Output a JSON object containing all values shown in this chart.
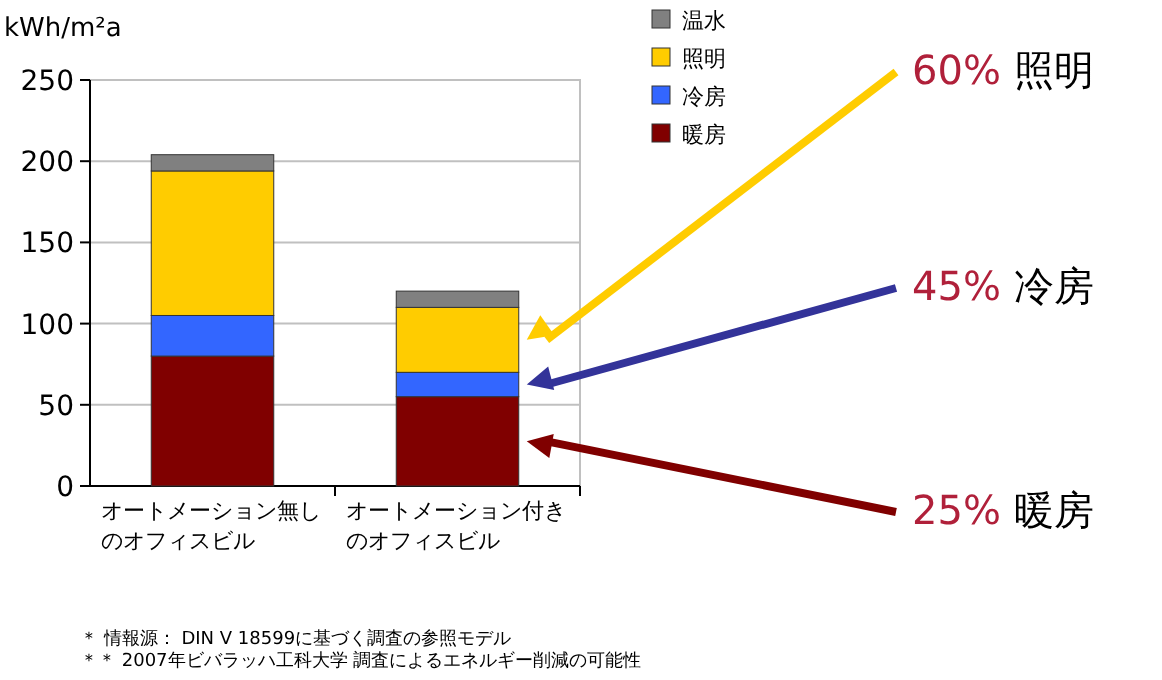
{
  "chart_data": {
    "type": "bar",
    "stacked": true,
    "ylabel": "kWh/m²a",
    "categories": [
      "オートメーション無しのオフィスビル",
      "オートメーション付きのオフィスビル"
    ],
    "series": [
      {
        "name": "暖房",
        "color": "#800000",
        "values": [
          80,
          55
        ]
      },
      {
        "name": "冷房",
        "color": "#3366ff",
        "values": [
          25,
          15
        ]
      },
      {
        "name": "照明",
        "color": "#ffcc00",
        "values": [
          89,
          40
        ]
      },
      {
        "name": "温水",
        "color": "#808080",
        "values": [
          10,
          10
        ]
      }
    ],
    "ylim": [
      0,
      250
    ],
    "yticks": [
      0,
      50,
      100,
      150,
      200,
      250
    ],
    "grid": "y",
    "legend": "top right",
    "annotations": [
      "60% 照明",
      "45% 冷房",
      "25% 暖房",
      "＊ 情報源： DIN V 18599に基づく調査の参照モデル",
      "＊＊ 2007年ビバラッハ工科大学 調査によるエネルギー削減の可能性"
    ]
  }
}
